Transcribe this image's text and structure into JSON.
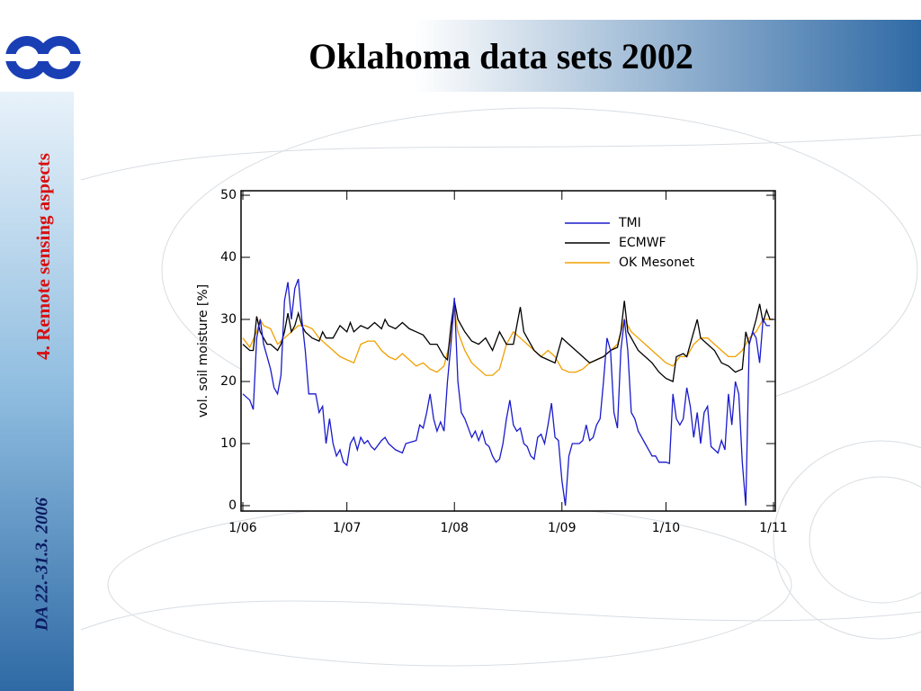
{
  "slide": {
    "title": "Oklahoma data sets 2002",
    "section": "4. Remote sensing aspects",
    "footer": "DA 22.-31.3. 2006"
  },
  "chart_data": {
    "type": "line",
    "ylabel": "vol. soil moisture [%]",
    "xlim": [
      0,
      153
    ],
    "ylim": [
      0,
      50
    ],
    "xticks": [
      {
        "value": 0,
        "label": "1/06"
      },
      {
        "value": 30,
        "label": "1/07"
      },
      {
        "value": 61,
        "label": "1/08"
      },
      {
        "value": 92,
        "label": "1/09"
      },
      {
        "value": 122,
        "label": "1/10"
      },
      {
        "value": 153,
        "label": "1/11"
      }
    ],
    "yticks": [
      0,
      10,
      20,
      30,
      40,
      50
    ],
    "legend": "upper right",
    "series": [
      {
        "name": "TMI",
        "color": "#1a1acc",
        "x": [
          0,
          2,
          3,
          4,
          5,
          6,
          7,
          8,
          9,
          10,
          11,
          12,
          13,
          14,
          15,
          16,
          17,
          18,
          19,
          20,
          21,
          22,
          23,
          24,
          25,
          26,
          27,
          28,
          29,
          30,
          31,
          32,
          33,
          34,
          35,
          36,
          37,
          38,
          40,
          41,
          42,
          44,
          46,
          47,
          50,
          51,
          52,
          53,
          54,
          55,
          56,
          57,
          58,
          59,
          60,
          61,
          62,
          63,
          64,
          65,
          66,
          67,
          68,
          69,
          70,
          71,
          72,
          73,
          74,
          75,
          76,
          77,
          78,
          79,
          80,
          81,
          82,
          83,
          84,
          85,
          86,
          87,
          88,
          89,
          90,
          91,
          92,
          93,
          94,
          95,
          97,
          98,
          99,
          100,
          101,
          102,
          103,
          104,
          105,
          106,
          107,
          108,
          109,
          110,
          111,
          112,
          113,
          114,
          115,
          116,
          117,
          118,
          119,
          120,
          122,
          123,
          124,
          125,
          126,
          127,
          128,
          129,
          130,
          131,
          132,
          133,
          134,
          135,
          136,
          137,
          138,
          139,
          140,
          141,
          142,
          143,
          144,
          145,
          146,
          147,
          148,
          149,
          150,
          151,
          152
        ],
        "values": [
          18,
          17,
          15.5,
          27,
          30,
          26,
          24,
          22,
          19,
          18,
          21,
          33,
          36,
          30,
          35,
          36.5,
          30,
          25,
          18,
          18,
          18,
          15,
          16,
          10,
          14,
          10,
          8,
          9,
          7,
          6.5,
          10,
          11,
          9,
          11,
          10,
          10.5,
          9.5,
          9,
          10.5,
          11,
          10,
          9,
          8.5,
          10,
          10.5,
          13,
          12.5,
          15,
          18,
          14,
          12,
          13.5,
          12,
          20,
          26,
          33.5,
          20,
          15,
          14,
          12.5,
          11,
          12,
          10.5,
          12,
          10,
          9.5,
          8,
          7,
          7.5,
          10,
          14,
          17,
          13,
          12,
          12.5,
          10,
          9.5,
          8,
          7.5,
          11,
          11.5,
          10,
          13,
          16.5,
          11,
          10.5,
          4,
          0,
          8,
          10,
          10,
          10.5,
          13,
          10.5,
          11,
          13,
          14,
          20,
          27,
          25,
          15,
          12.5,
          25,
          30,
          25,
          15,
          14,
          12,
          11,
          10,
          9,
          8,
          8,
          7,
          7,
          6.8,
          18,
          14,
          13,
          14,
          19,
          16,
          11,
          15,
          10,
          15,
          16,
          9.5,
          9,
          8.5,
          10.5,
          9,
          18,
          13,
          20,
          18,
          7,
          0,
          26,
          28,
          27,
          23,
          30,
          29,
          29
        ]
      },
      {
        "name": "ECMWF",
        "color": "#000000",
        "x": [
          0,
          2,
          3,
          4,
          5,
          6,
          7,
          8,
          9,
          10,
          11,
          12,
          13,
          14,
          15,
          16,
          17,
          18,
          20,
          22,
          23,
          24,
          26,
          28,
          30,
          31,
          32,
          34,
          36,
          38,
          40,
          41,
          42,
          44,
          46,
          48,
          50,
          52,
          54,
          56,
          58,
          59,
          60,
          61,
          62,
          64,
          66,
          68,
          70,
          72,
          74,
          76,
          78,
          79,
          80,
          81,
          82,
          84,
          86,
          88,
          90,
          92,
          94,
          96,
          98,
          100,
          102,
          104,
          106,
          108,
          109,
          110,
          111,
          112,
          114,
          116,
          118,
          120,
          122,
          124,
          125,
          127,
          128,
          130,
          131,
          132,
          134,
          136,
          138,
          140,
          142,
          144,
          145,
          146,
          148,
          149,
          150,
          151,
          152,
          153
        ],
        "values": [
          26,
          25,
          25,
          30.5,
          28,
          27,
          26,
          26,
          25.5,
          25,
          26,
          28,
          31,
          28,
          29,
          31,
          29,
          28,
          27,
          26.5,
          28,
          27,
          27,
          29,
          28,
          29.5,
          28,
          29,
          28.5,
          29.5,
          28.5,
          30,
          29,
          28.5,
          29.5,
          28.5,
          28,
          27.5,
          26,
          26,
          24,
          23.5,
          29,
          33,
          30,
          28,
          26.5,
          26,
          27,
          25,
          28,
          26,
          26,
          29,
          32,
          28,
          27,
          25,
          24,
          23.5,
          23,
          27,
          26,
          25,
          24,
          23,
          23.5,
          24,
          25,
          25.5,
          28,
          33,
          28,
          27,
          25,
          24,
          23,
          21.5,
          20.5,
          20,
          24,
          24.5,
          24,
          28,
          30,
          27,
          26,
          25,
          23,
          22.5,
          21.5,
          22,
          28,
          26,
          30,
          32.5,
          29.5,
          31.5,
          30,
          30
        ]
      },
      {
        "name": "OK Mesonet",
        "color": "#f0a000",
        "x": [
          0,
          2,
          4,
          5,
          6,
          8,
          10,
          12,
          14,
          16,
          18,
          20,
          22,
          24,
          26,
          28,
          30,
          32,
          34,
          36,
          38,
          40,
          42,
          44,
          46,
          48,
          50,
          52,
          54,
          56,
          58,
          60,
          61,
          62,
          64,
          66,
          68,
          70,
          72,
          74,
          76,
          78,
          80,
          82,
          84,
          86,
          88,
          90,
          92,
          94,
          96,
          98,
          100,
          102,
          104,
          106,
          108,
          110,
          112,
          114,
          116,
          118,
          120,
          122,
          124,
          126,
          128,
          130,
          132,
          134,
          136,
          138,
          140,
          142,
          144,
          146,
          148,
          150,
          152,
          153
        ],
        "values": [
          27,
          25.5,
          28,
          30,
          29,
          28.5,
          26,
          27,
          28,
          29,
          29,
          28.5,
          27,
          26,
          25,
          24,
          23.5,
          23,
          26,
          26.5,
          26.5,
          25,
          24,
          23.5,
          24.5,
          23.5,
          22.5,
          23,
          22,
          21.5,
          22.5,
          27,
          31.5,
          28,
          25,
          23,
          22,
          21,
          21,
          22,
          26,
          28,
          27,
          26,
          25,
          24,
          25,
          24,
          22,
          21.5,
          21.5,
          22,
          23,
          23.5,
          24,
          25,
          26,
          30,
          28,
          27,
          26,
          25,
          24,
          23,
          22.5,
          24,
          24,
          26,
          27,
          27,
          26,
          25,
          24,
          24,
          25,
          27,
          28,
          30,
          30,
          30
        ]
      }
    ]
  }
}
